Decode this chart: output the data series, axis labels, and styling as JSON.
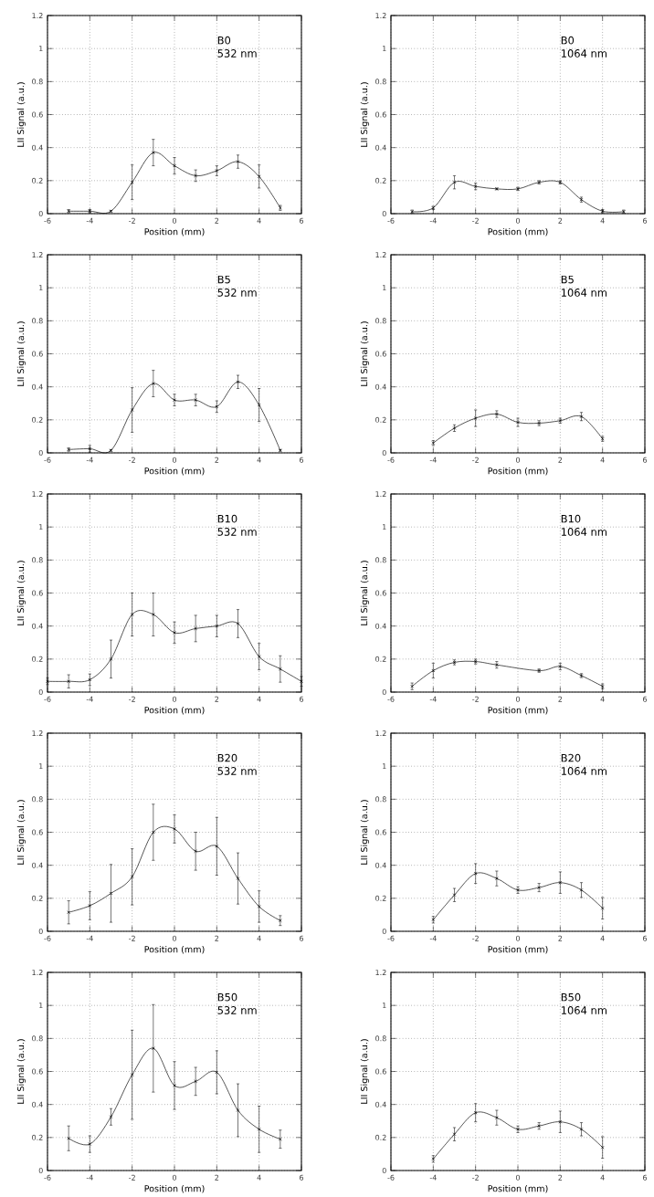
{
  "chart_data": [
    {
      "type": "line",
      "annotations": [
        "B0",
        "532 nm"
      ],
      "xlabel": "Position (mm)",
      "ylabel": "LII Signal (a.u.)",
      "color": "#000000",
      "marker": "cross",
      "line_style": "solid",
      "grid": true,
      "xlim": [
        -6,
        6
      ],
      "ylim": [
        0,
        1.2
      ],
      "xticks": [
        -6,
        -4,
        -2,
        0,
        2,
        4,
        6
      ],
      "yticks": [
        0,
        0.2,
        0.4,
        0.6,
        0.8,
        1,
        1.2
      ],
      "x": [
        -5,
        -4,
        -3,
        -2,
        -1,
        0,
        1,
        2,
        3,
        4,
        5
      ],
      "values": [
        0.015,
        0.015,
        0.015,
        0.19,
        0.37,
        0.29,
        0.23,
        0.26,
        0.315,
        0.225,
        0.035
      ],
      "errors": [
        0.01,
        0.01,
        0.005,
        0.105,
        0.08,
        0.05,
        0.035,
        0.03,
        0.04,
        0.07,
        0.015
      ]
    },
    {
      "type": "line",
      "annotations": [
        "B0",
        "1064 nm"
      ],
      "xlabel": "Position (mm)",
      "ylabel": "LII Signal (a.u.)",
      "color": "#000000",
      "marker": "cross",
      "line_style": "solid",
      "grid": true,
      "xlim": [
        -6,
        6
      ],
      "ylim": [
        0,
        1.2
      ],
      "xticks": [
        -6,
        -4,
        -2,
        0,
        2,
        4,
        6
      ],
      "yticks": [
        0,
        0.2,
        0.4,
        0.6,
        0.8,
        1,
        1.2
      ],
      "x": [
        -5,
        -4,
        -3,
        -2,
        -1,
        0,
        1,
        2,
        3,
        4,
        5
      ],
      "values": [
        0.012,
        0.035,
        0.19,
        0.165,
        0.15,
        0.15,
        0.19,
        0.19,
        0.085,
        0.015,
        0.012
      ],
      "errors": [
        0.01,
        0.01,
        0.04,
        0.02,
        0.005,
        0.01,
        0.01,
        0.01,
        0.015,
        0.01,
        0.01
      ]
    },
    {
      "type": "line",
      "annotations": [
        "B5",
        "532 nm"
      ],
      "xlabel": "Position (mm)",
      "ylabel": "LII Signal (a.u.)",
      "color": "#000000",
      "marker": "cross",
      "line_style": "solid",
      "grid": true,
      "xlim": [
        -6,
        6
      ],
      "ylim": [
        0,
        1.2
      ],
      "xticks": [
        -6,
        -4,
        -2,
        0,
        2,
        4,
        6
      ],
      "yticks": [
        0,
        0.2,
        0.4,
        0.6,
        0.8,
        1,
        1.2
      ],
      "x": [
        -5,
        -4,
        -3,
        -2,
        -1,
        0,
        1,
        2,
        3,
        4,
        5
      ],
      "values": [
        0.02,
        0.025,
        0.015,
        0.26,
        0.42,
        0.32,
        0.32,
        0.28,
        0.43,
        0.29,
        0.015
      ],
      "errors": [
        0.01,
        0.02,
        0.005,
        0.135,
        0.08,
        0.035,
        0.035,
        0.035,
        0.04,
        0.1,
        0.005
      ]
    },
    {
      "type": "line",
      "annotations": [
        "B5",
        "1064 nm"
      ],
      "xlabel": "Position (mm)",
      "ylabel": "LII Signal (a.u.)",
      "color": "#000000",
      "marker": "cross",
      "line_style": "solid",
      "grid": true,
      "xlim": [
        -6,
        6
      ],
      "ylim": [
        0,
        1.2
      ],
      "xticks": [
        -6,
        -4,
        -2,
        0,
        2,
        4,
        6
      ],
      "yticks": [
        0,
        0.2,
        0.4,
        0.6,
        0.8,
        1,
        1.2
      ],
      "x": [
        -4,
        -3,
        -2,
        -1,
        0,
        1,
        2,
        3,
        4
      ],
      "values": [
        0.06,
        0.15,
        0.21,
        0.235,
        0.185,
        0.18,
        0.195,
        0.22,
        0.085
      ],
      "errors": [
        0.015,
        0.02,
        0.05,
        0.02,
        0.025,
        0.015,
        0.015,
        0.025,
        0.015
      ]
    },
    {
      "type": "line",
      "annotations": [
        "B10",
        "532 nm"
      ],
      "xlabel": "Position (mm)",
      "ylabel": "LII Signal (a.u.)",
      "color": "#000000",
      "marker": "cross",
      "line_style": "solid",
      "grid": true,
      "xlim": [
        -6,
        6
      ],
      "ylim": [
        0,
        1.2
      ],
      "xticks": [
        -6,
        -4,
        -2,
        0,
        2,
        4,
        6
      ],
      "yticks": [
        0,
        0.2,
        0.4,
        0.6,
        0.8,
        1,
        1.2
      ],
      "x": [
        -6,
        -5,
        -4,
        -3,
        -2,
        -1,
        0,
        1,
        2,
        3,
        4,
        5,
        6
      ],
      "values": [
        0.065,
        0.065,
        0.075,
        0.2,
        0.47,
        0.47,
        0.36,
        0.385,
        0.4,
        0.415,
        0.215,
        0.14,
        0.065
      ],
      "errors": [
        0.02,
        0.04,
        0.035,
        0.115,
        0.13,
        0.13,
        0.065,
        0.08,
        0.065,
        0.085,
        0.08,
        0.08,
        0.03
      ]
    },
    {
      "type": "line",
      "annotations": [
        "B10",
        "1064 nm"
      ],
      "xlabel": "Position (mm)",
      "ylabel": "LII Signal (a.u.)",
      "color": "#000000",
      "marker": "cross",
      "line_style": "solid",
      "grid": true,
      "xlim": [
        -6,
        6
      ],
      "ylim": [
        0,
        1.2
      ],
      "xticks": [
        -6,
        -4,
        -2,
        0,
        2,
        4,
        6
      ],
      "yticks": [
        0,
        0.2,
        0.4,
        0.6,
        0.8,
        1,
        1.2
      ],
      "x": [
        -5,
        -4,
        -3,
        -2,
        -1,
        1,
        2,
        3,
        4
      ],
      "values": [
        0.035,
        0.13,
        0.18,
        0.185,
        0.165,
        0.13,
        0.155,
        0.1,
        0.035
      ],
      "errors": [
        0.02,
        0.045,
        0.015,
        0.015,
        0.02,
        0.01,
        0.02,
        0.012,
        0.015
      ]
    },
    {
      "type": "line",
      "annotations": [
        "B20",
        "532 nm"
      ],
      "xlabel": "Position (mm)",
      "ylabel": "LII Signal (a.u.)",
      "color": "#000000",
      "marker": "cross",
      "line_style": "solid",
      "grid": true,
      "xlim": [
        -6,
        6
      ],
      "ylim": [
        0,
        1.2
      ],
      "xticks": [
        -6,
        -4,
        -2,
        0,
        2,
        4,
        6
      ],
      "yticks": [
        0,
        0.2,
        0.4,
        0.6,
        0.8,
        1,
        1.2
      ],
      "x": [
        -5,
        -4,
        -3,
        -2,
        -1,
        0,
        1,
        2,
        3,
        4,
        5
      ],
      "values": [
        0.115,
        0.155,
        0.23,
        0.33,
        0.6,
        0.62,
        0.485,
        0.515,
        0.32,
        0.15,
        0.065
      ],
      "errors": [
        0.07,
        0.085,
        0.175,
        0.17,
        0.17,
        0.085,
        0.115,
        0.175,
        0.155,
        0.095,
        0.03
      ]
    },
    {
      "type": "line",
      "annotations": [
        "B20",
        "1064 nm"
      ],
      "xlabel": "Position (mm)",
      "ylabel": "LII Signal (a.u.)",
      "color": "#000000",
      "marker": "cross",
      "line_style": "solid",
      "grid": true,
      "xlim": [
        -6,
        6
      ],
      "ylim": [
        0,
        1.2
      ],
      "xticks": [
        -6,
        -4,
        -2,
        0,
        2,
        4,
        6
      ],
      "yticks": [
        0,
        0.2,
        0.4,
        0.6,
        0.8,
        1,
        1.2
      ],
      "x": [
        -4,
        -3,
        -2,
        -1,
        0,
        1,
        2,
        3,
        4
      ],
      "values": [
        0.07,
        0.22,
        0.35,
        0.32,
        0.25,
        0.265,
        0.295,
        0.25,
        0.14
      ],
      "errors": [
        0.02,
        0.04,
        0.06,
        0.045,
        0.02,
        0.025,
        0.065,
        0.045,
        0.065
      ]
    },
    {
      "type": "line",
      "annotations": [
        "B50",
        "532 nm"
      ],
      "xlabel": "Position (mm)",
      "ylabel": "LII Signal (a.u.)",
      "color": "#000000",
      "marker": "cross",
      "line_style": "solid",
      "grid": true,
      "xlim": [
        -6,
        6
      ],
      "ylim": [
        0,
        1.2
      ],
      "xticks": [
        -6,
        -4,
        -2,
        0,
        2,
        4,
        6
      ],
      "yticks": [
        0,
        0.2,
        0.4,
        0.6,
        0.8,
        1,
        1.2
      ],
      "x": [
        -5,
        -4,
        -3,
        -2,
        -1,
        0,
        1,
        2,
        3,
        4,
        5
      ],
      "values": [
        0.195,
        0.16,
        0.325,
        0.58,
        0.74,
        0.515,
        0.54,
        0.595,
        0.365,
        0.25,
        0.19
      ],
      "errors": [
        0.075,
        0.05,
        0.05,
        0.27,
        0.265,
        0.145,
        0.085,
        0.13,
        0.16,
        0.14,
        0.055
      ]
    },
    {
      "type": "line",
      "annotations": [
        "B50",
        "1064 nm"
      ],
      "xlabel": "Position (mm)",
      "ylabel": "LII Signal (a.u.)",
      "color": "#000000",
      "marker": "cross",
      "line_style": "solid",
      "grid": true,
      "xlim": [
        -6,
        6
      ],
      "ylim": [
        0,
        1.2
      ],
      "xticks": [
        -6,
        -4,
        -2,
        0,
        2,
        4,
        6
      ],
      "yticks": [
        0,
        0.2,
        0.4,
        0.6,
        0.8,
        1,
        1.2
      ],
      "x": [
        -4,
        -3,
        -2,
        -1,
        0,
        1,
        2,
        3,
        4
      ],
      "values": [
        0.07,
        0.22,
        0.35,
        0.32,
        0.25,
        0.27,
        0.295,
        0.25,
        0.14
      ],
      "errors": [
        0.02,
        0.04,
        0.055,
        0.045,
        0.02,
        0.02,
        0.065,
        0.04,
        0.065
      ]
    }
  ]
}
